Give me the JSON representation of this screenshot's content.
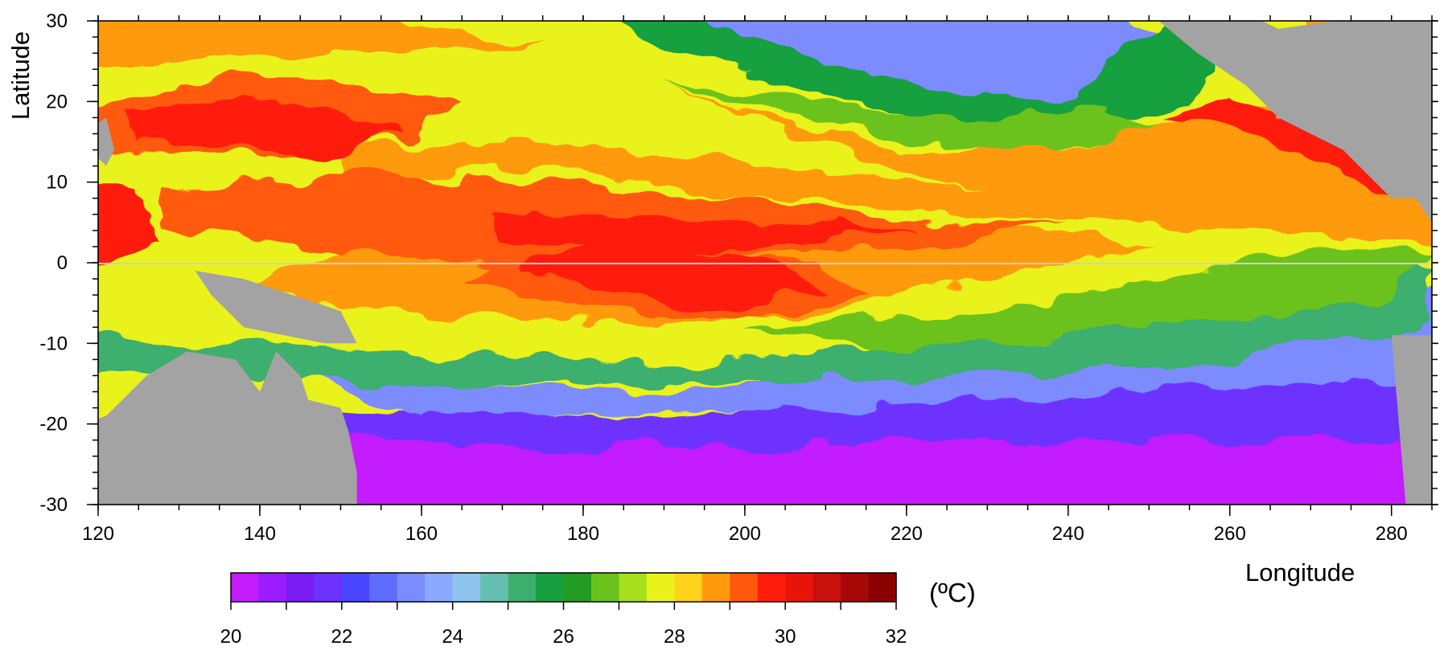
{
  "chart_data": {
    "type": "heatmap",
    "xlabel": "Longitude",
    "ylabel": "Latitude",
    "xlim": [
      120,
      285
    ],
    "ylim": [
      -30,
      30
    ],
    "x_ticks": [
      "120",
      "140",
      "160",
      "180",
      "200",
      "220",
      "240",
      "260",
      "280"
    ],
    "y_ticks": [
      "30",
      "20",
      "10",
      "0",
      "-10",
      "-20",
      "-30"
    ],
    "x_tick_values": [
      120,
      140,
      160,
      180,
      200,
      220,
      240,
      260,
      280
    ],
    "y_tick_values": [
      30,
      20,
      10,
      0,
      -10,
      -20,
      -30
    ],
    "land_color": "#a3a3a3",
    "equator_line_color": "#cfcfcf",
    "colorbar": {
      "unit_label": "(ºC)",
      "min": 20,
      "max": 32,
      "step": 0.5,
      "tick_labels": [
        "20",
        "22",
        "24",
        "26",
        "28",
        "30",
        "32"
      ],
      "tick_values": [
        20,
        22,
        24,
        26,
        28,
        30,
        32
      ],
      "colors": [
        "#c21cff",
        "#9a1cff",
        "#7a1cf2",
        "#6e32ff",
        "#4b46ff",
        "#5f6dff",
        "#7b8cff",
        "#8aaaff",
        "#8ec4ee",
        "#65bfae",
        "#3caf6e",
        "#18a040",
        "#229c22",
        "#6cc21c",
        "#a8de1c",
        "#eaf21c",
        "#ffd21c",
        "#ff9a0c",
        "#ff5a0c",
        "#ff1e0c",
        "#e8140c",
        "#c8100c",
        "#a60808",
        "#8c0000"
      ]
    },
    "sst_field": {
      "description_of_pattern": "warm pool west, equatorial cold tongue east",
      "samples": [
        {
          "lon": 130,
          "lat": 15,
          "temp": 29.6
        },
        {
          "lon": 150,
          "lat": 15,
          "temp": 29.2
        },
        {
          "lon": 180,
          "lat": 20,
          "temp": 28.6
        },
        {
          "lon": 200,
          "lat": 25,
          "temp": 25.8
        },
        {
          "lon": 230,
          "lat": 25,
          "temp": 22.5
        },
        {
          "lon": 185,
          "lat": -2,
          "temp": 30.2
        },
        {
          "lon": 160,
          "lat": 2,
          "temp": 29.5
        },
        {
          "lon": 250,
          "lat": -5,
          "temp": 25.8
        },
        {
          "lon": 200,
          "lat": -15,
          "temp": 25.5
        },
        {
          "lon": 240,
          "lat": -25,
          "temp": 20.2
        },
        {
          "lon": 270,
          "lat": 15,
          "temp": 29.0
        }
      ]
    }
  }
}
